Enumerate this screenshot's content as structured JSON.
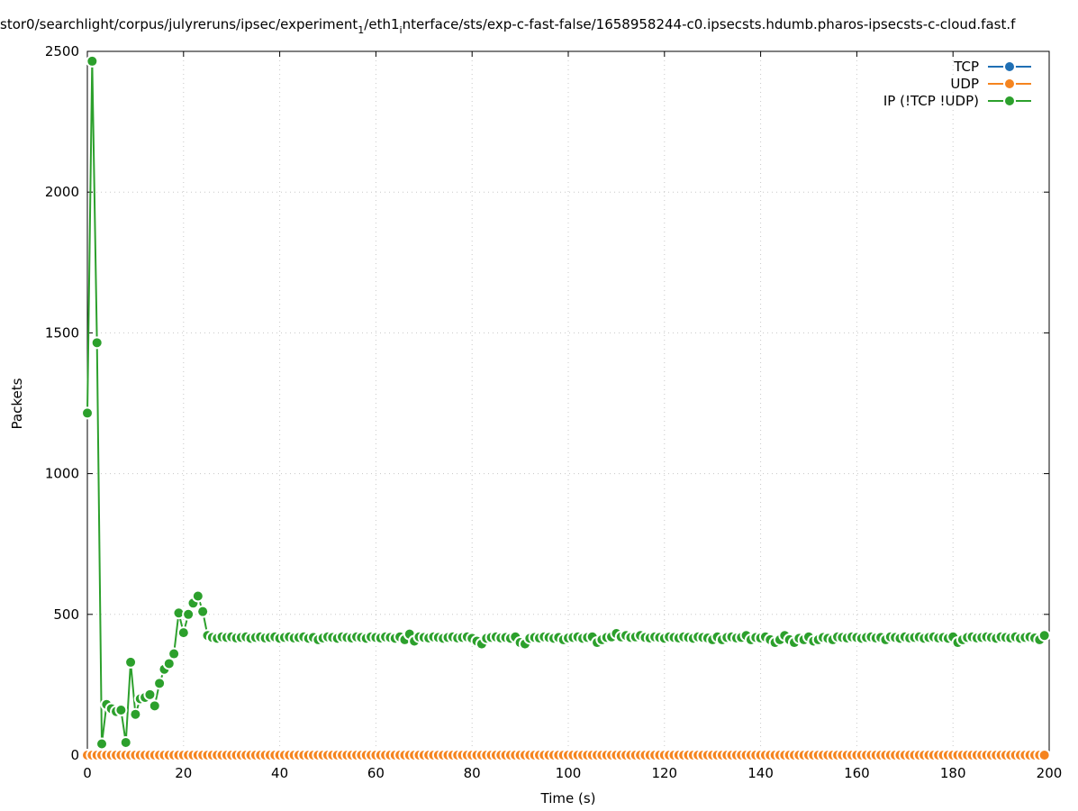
{
  "chart_data": {
    "type": "line",
    "title_parts": [
      "stor0/searchlight/corpus/julyreruns/ipsec/experiment",
      "1",
      "/eth1",
      "i",
      "nterface/sts/exp-c-fast-false/1658958244-c0.ipsecsts.hdumb.pharos-ipsecsts-c-cloud.fast.f"
    ],
    "x_label": "Time (s)",
    "y_label": "Packets",
    "xlim": [
      0,
      200
    ],
    "ylim": [
      0,
      2500
    ],
    "xticks": [
      0,
      20,
      40,
      60,
      80,
      100,
      120,
      140,
      160,
      180,
      200
    ],
    "yticks": [
      0,
      500,
      1000,
      1500,
      2000,
      2500
    ],
    "grid": true,
    "legend": "upper right",
    "x": [
      0,
      1,
      2,
      3,
      4,
      5,
      6,
      7,
      8,
      9,
      10,
      11,
      12,
      13,
      14,
      15,
      16,
      17,
      18,
      19,
      20,
      21,
      22,
      23,
      24,
      25,
      26,
      27,
      28,
      29,
      30,
      31,
      32,
      33,
      34,
      35,
      36,
      37,
      38,
      39,
      40,
      41,
      42,
      43,
      44,
      45,
      46,
      47,
      48,
      49,
      50,
      51,
      52,
      53,
      54,
      55,
      56,
      57,
      58,
      59,
      60,
      61,
      62,
      63,
      64,
      65,
      66,
      67,
      68,
      69,
      70,
      71,
      72,
      73,
      74,
      75,
      76,
      77,
      78,
      79,
      80,
      81,
      82,
      83,
      84,
      85,
      86,
      87,
      88,
      89,
      90,
      91,
      92,
      93,
      94,
      95,
      96,
      97,
      98,
      99,
      100,
      101,
      102,
      103,
      104,
      105,
      106,
      107,
      108,
      109,
      110,
      111,
      112,
      113,
      114,
      115,
      116,
      117,
      118,
      119,
      120,
      121,
      122,
      123,
      124,
      125,
      126,
      127,
      128,
      129,
      130,
      131,
      132,
      133,
      134,
      135,
      136,
      137,
      138,
      139,
      140,
      141,
      142,
      143,
      144,
      145,
      146,
      147,
      148,
      149,
      150,
      151,
      152,
      153,
      154,
      155,
      156,
      157,
      158,
      159,
      160,
      161,
      162,
      163,
      164,
      165,
      166,
      167,
      168,
      169,
      170,
      171,
      172,
      173,
      174,
      175,
      176,
      177,
      178,
      179,
      180,
      181,
      182,
      183,
      184,
      185,
      186,
      187,
      188,
      189,
      190,
      191,
      192,
      193,
      194,
      195,
      196,
      197,
      198,
      199
    ],
    "series": [
      {
        "name": "TCP",
        "color": "#1f6fb4",
        "values": [
          0,
          0,
          0,
          0,
          0,
          0,
          0,
          0,
          0,
          0,
          0,
          0,
          0,
          0,
          0,
          0,
          0,
          0,
          0,
          0,
          0,
          0,
          0,
          0,
          0,
          0,
          0,
          0,
          0,
          0,
          0,
          0,
          0,
          0,
          0,
          0,
          0,
          0,
          0,
          0,
          0,
          0,
          0,
          0,
          0,
          0,
          0,
          0,
          0,
          0,
          0,
          0,
          0,
          0,
          0,
          0,
          0,
          0,
          0,
          0,
          0,
          0,
          0,
          0,
          0,
          0,
          0,
          0,
          0,
          0,
          0,
          0,
          0,
          0,
          0,
          0,
          0,
          0,
          0,
          0,
          0,
          0,
          0,
          0,
          0,
          0,
          0,
          0,
          0,
          0,
          0,
          0,
          0,
          0,
          0,
          0,
          0,
          0,
          0,
          0,
          0,
          0,
          0,
          0,
          0,
          0,
          0,
          0,
          0,
          0,
          0,
          0,
          0,
          0,
          0,
          0,
          0,
          0,
          0,
          0,
          0,
          0,
          0,
          0,
          0,
          0,
          0,
          0,
          0,
          0,
          0,
          0,
          0,
          0,
          0,
          0,
          0,
          0,
          0,
          0,
          0,
          0,
          0,
          0,
          0,
          0,
          0,
          0,
          0,
          0,
          0,
          0,
          0,
          0,
          0,
          0,
          0,
          0,
          0,
          0,
          0,
          0,
          0,
          0,
          0,
          0,
          0,
          0,
          0,
          0,
          0,
          0,
          0,
          0,
          0,
          0,
          0,
          0,
          0,
          0,
          0,
          0,
          0,
          0,
          0,
          0,
          0,
          0,
          0,
          0,
          0,
          0,
          0,
          0,
          0,
          0,
          0,
          0,
          0,
          0
        ]
      },
      {
        "name": "UDP",
        "color": "#f5841f",
        "values": [
          0,
          0,
          0,
          0,
          0,
          0,
          0,
          0,
          0,
          0,
          0,
          0,
          0,
          0,
          0,
          0,
          0,
          0,
          0,
          0,
          0,
          0,
          0,
          0,
          0,
          0,
          0,
          0,
          0,
          0,
          0,
          0,
          0,
          0,
          0,
          0,
          0,
          0,
          0,
          0,
          0,
          0,
          0,
          0,
          0,
          0,
          0,
          0,
          0,
          0,
          0,
          0,
          0,
          0,
          0,
          0,
          0,
          0,
          0,
          0,
          0,
          0,
          0,
          0,
          0,
          0,
          0,
          0,
          0,
          0,
          0,
          0,
          0,
          0,
          0,
          0,
          0,
          0,
          0,
          0,
          0,
          0,
          0,
          0,
          0,
          0,
          0,
          0,
          0,
          0,
          0,
          0,
          0,
          0,
          0,
          0,
          0,
          0,
          0,
          0,
          0,
          0,
          0,
          0,
          0,
          0,
          0,
          0,
          0,
          0,
          0,
          0,
          0,
          0,
          0,
          0,
          0,
          0,
          0,
          0,
          0,
          0,
          0,
          0,
          0,
          0,
          0,
          0,
          0,
          0,
          0,
          0,
          0,
          0,
          0,
          0,
          0,
          0,
          0,
          0,
          0,
          0,
          0,
          0,
          0,
          0,
          0,
          0,
          0,
          0,
          0,
          0,
          0,
          0,
          0,
          0,
          0,
          0,
          0,
          0,
          0,
          0,
          0,
          0,
          0,
          0,
          0,
          0,
          0,
          0,
          0,
          0,
          0,
          0,
          0,
          0,
          0,
          0,
          0,
          0,
          0,
          0,
          0,
          0,
          0,
          0,
          0,
          0,
          0,
          0,
          0,
          0,
          0,
          0,
          0,
          0,
          0,
          0,
          0,
          0
        ]
      },
      {
        "name": "IP (!TCP  !UDP)",
        "color": "#2ca02c",
        "values": [
          1215,
          2465,
          1465,
          40,
          180,
          165,
          155,
          160,
          45,
          330,
          145,
          200,
          205,
          215,
          175,
          255,
          305,
          325,
          360,
          505,
          435,
          500,
          540,
          565,
          510,
          425,
          418,
          415,
          420,
          418,
          420,
          416,
          418,
          420,
          415,
          418,
          420,
          416,
          418,
          420,
          415,
          418,
          420,
          416,
          418,
          420,
          415,
          418,
          410,
          416,
          420,
          418,
          415,
          420,
          418,
          416,
          420,
          418,
          415,
          420,
          418,
          416,
          420,
          418,
          415,
          420,
          410,
          430,
          405,
          420,
          418,
          416,
          420,
          418,
          415,
          418,
          420,
          416,
          418,
          420,
          415,
          405,
          395,
          415,
          418,
          420,
          416,
          418,
          415,
          420,
          400,
          395,
          415,
          418,
          416,
          420,
          418,
          415,
          418,
          410,
          416,
          418,
          420,
          415,
          418,
          420,
          400,
          410,
          418,
          420,
          432,
          420,
          425,
          418,
          420,
          425,
          418,
          416,
          420,
          418,
          415,
          420,
          418,
          416,
          420,
          418,
          415,
          420,
          418,
          416,
          410,
          420,
          410,
          418,
          420,
          416,
          418,
          425,
          410,
          418,
          416,
          420,
          410,
          400,
          410,
          425,
          410,
          400,
          415,
          410,
          420,
          405,
          410,
          418,
          415,
          410,
          420,
          418,
          416,
          420,
          418,
          415,
          418,
          420,
          416,
          418,
          410,
          420,
          418,
          415,
          420,
          416,
          418,
          420,
          415,
          418,
          420,
          416,
          418,
          415,
          420,
          400,
          410,
          418,
          420,
          416,
          418,
          420,
          418,
          415,
          420,
          418,
          416,
          420,
          415,
          418,
          420,
          416,
          410,
          425
        ]
      }
    ]
  }
}
